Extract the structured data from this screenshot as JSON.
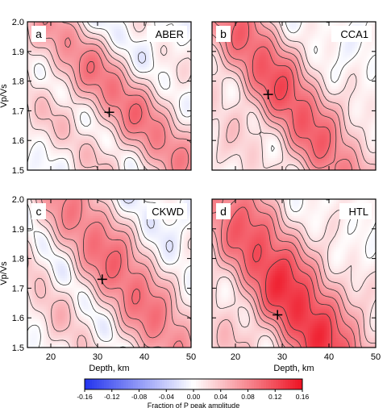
{
  "chart_data": [
    {
      "type": "heatmap",
      "panel_letter": "a",
      "station": "ABER",
      "xlim": [
        15,
        50
      ],
      "ylim": [
        1.5,
        2.0
      ],
      "best_fit": {
        "depth": 32.5,
        "vp_vs": 1.695
      },
      "ridge": {
        "p0": [
          20,
          1.985
        ],
        "p1": [
          47,
          1.55
        ],
        "width": 5.5,
        "amplitude": 0.09
      },
      "blue_amplitude": -0.035
    },
    {
      "type": "heatmap",
      "panel_letter": "b",
      "station": "CCA1",
      "xlim": [
        15,
        50
      ],
      "ylim": [
        1.5,
        2.0
      ],
      "best_fit": {
        "depth": 27,
        "vp_vs": 1.755
      },
      "ridge": {
        "p0": [
          21,
          1.98
        ],
        "p1": [
          43,
          1.5
        ],
        "width": 5.5,
        "amplitude": 0.12
      },
      "blue_amplitude": -0.035
    },
    {
      "type": "heatmap",
      "panel_letter": "c",
      "station": "CKWD",
      "xlim": [
        15,
        50
      ],
      "ylim": [
        1.5,
        2.0
      ],
      "best_fit": {
        "depth": 31,
        "vp_vs": 1.73
      },
      "ridge": {
        "p0": [
          25,
          1.98
        ],
        "p1": [
          47,
          1.5
        ],
        "width": 6.5,
        "amplitude": 0.095
      },
      "blue_amplitude": -0.05
    },
    {
      "type": "heatmap",
      "panel_letter": "d",
      "station": "HTL",
      "xlim": [
        15,
        50
      ],
      "ylim": [
        1.5,
        2.0
      ],
      "best_fit": {
        "depth": 29,
        "vp_vs": 1.61
      },
      "ridge": {
        "p0": [
          18.5,
          1.99
        ],
        "p1": [
          40,
          1.5
        ],
        "width": 6.5,
        "amplitude": 0.14
      },
      "blue_amplitude": -0.025
    }
  ],
  "axes": {
    "xlabel": "Depth, km",
    "ylabel": "Vp/Vs",
    "xticks": [
      "20",
      "30",
      "40",
      "50"
    ],
    "yticks": [
      "1.5",
      "1.6",
      "1.7",
      "1.8",
      "1.9",
      "2.0"
    ]
  },
  "colorbar": {
    "title": "Fraction of P peak amplitude",
    "range": [
      -0.16,
      0.16
    ],
    "ticks": [
      "-0.16",
      "-0.12",
      "-0.08",
      "-0.04",
      "0.00",
      "0.04",
      "0.08",
      "0.12",
      "0.16"
    ],
    "colors": {
      "negative": "#2233ee",
      "zero": "#ffffff",
      "positive": "#ee1122"
    }
  }
}
